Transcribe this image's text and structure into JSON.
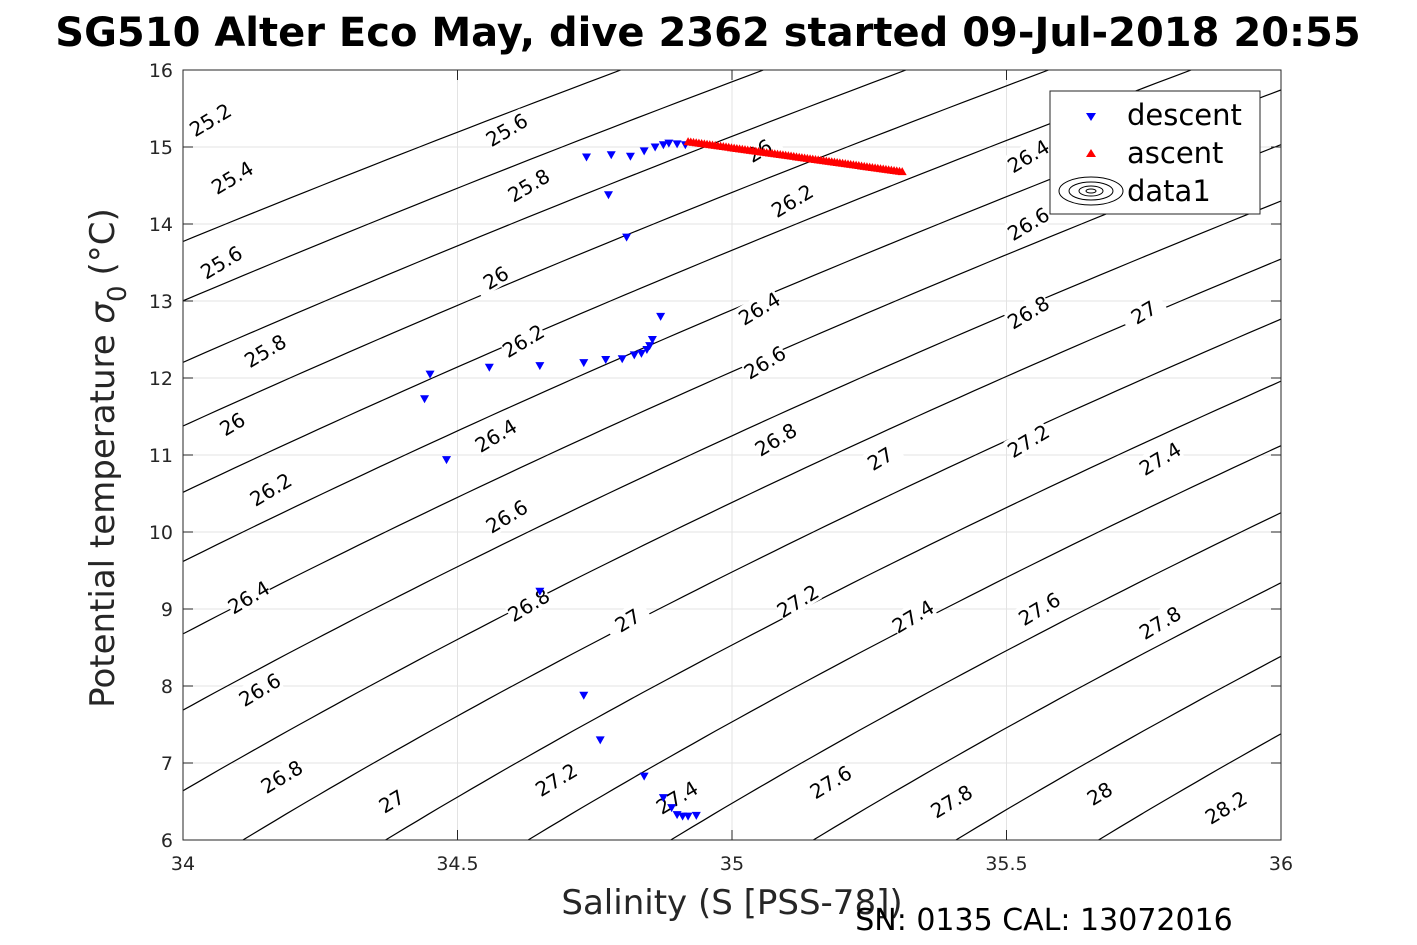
{
  "chart_data": {
    "type": "scatter",
    "title": "SG510 Alter Eco May, dive 2362 started 09-Jul-2018 20:55",
    "xlabel": "Salinity (S [PSS-78])",
    "ylabel": "Potential temperature",
    "ylabel_symbol": "σ",
    "ylabel_subscript": "0",
    "ylabel_unit": "(°C)",
    "footer": "SN: 0135  CAL: 13072016",
    "xlim": [
      34,
      36
    ],
    "ylim": [
      6,
      16
    ],
    "xticks": [
      "34",
      "34.5",
      "35",
      "35.5",
      "36"
    ],
    "yticks": [
      "6",
      "7",
      "8",
      "9",
      "10",
      "11",
      "12",
      "13",
      "14",
      "15",
      "16"
    ],
    "grid": true,
    "legend_position": "top-right",
    "contour_levels": [
      {
        "level": 25.2,
        "label": "25.2"
      },
      {
        "level": 25.4,
        "label": "25.4"
      },
      {
        "level": 25.6,
        "label": "25.6"
      },
      {
        "level": 25.8,
        "label": "25.8"
      },
      {
        "level": 26.0,
        "label": "26"
      },
      {
        "level": 26.2,
        "label": "26.2"
      },
      {
        "level": 26.4,
        "label": "26.4"
      },
      {
        "level": 26.6,
        "label": "26.6"
      },
      {
        "level": 26.8,
        "label": "26.8"
      },
      {
        "level": 27.0,
        "label": "27"
      },
      {
        "level": 27.2,
        "label": "27.2"
      },
      {
        "level": 27.4,
        "label": "27.4"
      },
      {
        "level": 27.6,
        "label": "27.6"
      },
      {
        "level": 27.8,
        "label": "27.8"
      },
      {
        "level": 28.0,
        "label": "28"
      },
      {
        "level": 28.2,
        "label": "28.2"
      }
    ],
    "contour_labels": [
      {
        "label": "25.2",
        "x": 34.05,
        "y": 15.35
      },
      {
        "label": "25.6",
        "x": 34.59,
        "y": 15.22
      },
      {
        "label": "26",
        "x": 35.05,
        "y": 14.95
      },
      {
        "label": "26.4",
        "x": 35.54,
        "y": 14.88
      },
      {
        "label": "25.4",
        "x": 34.09,
        "y": 14.6
      },
      {
        "label": "25.8",
        "x": 34.63,
        "y": 14.5
      },
      {
        "label": "26.2",
        "x": 35.11,
        "y": 14.3
      },
      {
        "label": "26.6",
        "x": 35.54,
        "y": 14.0
      },
      {
        "label": "25.6",
        "x": 34.07,
        "y": 13.5
      },
      {
        "label": "26",
        "x": 34.57,
        "y": 13.3
      },
      {
        "label": "26.4",
        "x": 35.05,
        "y": 12.9
      },
      {
        "label": "26.8",
        "x": 35.54,
        "y": 12.85
      },
      {
        "label": "25.8",
        "x": 34.15,
        "y": 12.35
      },
      {
        "label": "26.2",
        "x": 34.62,
        "y": 12.48
      },
      {
        "label": "26.6",
        "x": 35.06,
        "y": 12.2
      },
      {
        "label": "27",
        "x": 35.75,
        "y": 12.85
      },
      {
        "label": "26",
        "x": 34.09,
        "y": 11.4
      },
      {
        "label": "26.4",
        "x": 34.57,
        "y": 11.25
      },
      {
        "label": "26.8",
        "x": 35.08,
        "y": 11.2
      },
      {
        "label": "27",
        "x": 35.27,
        "y": 10.95
      },
      {
        "label": "27.2",
        "x": 35.54,
        "y": 11.18
      },
      {
        "label": "27.4",
        "x": 35.78,
        "y": 10.95
      },
      {
        "label": "26.2",
        "x": 34.16,
        "y": 10.55
      },
      {
        "label": "26.6",
        "x": 34.59,
        "y": 10.2
      },
      {
        "label": "26.4",
        "x": 34.12,
        "y": 9.15
      },
      {
        "label": "26.8",
        "x": 34.63,
        "y": 9.05
      },
      {
        "label": "27",
        "x": 34.81,
        "y": 8.85
      },
      {
        "label": "27.2",
        "x": 35.12,
        "y": 9.1
      },
      {
        "label": "27.4",
        "x": 35.33,
        "y": 8.9
      },
      {
        "label": "27.6",
        "x": 35.56,
        "y": 9.0
      },
      {
        "label": "27.8",
        "x": 35.78,
        "y": 8.82
      },
      {
        "label": "26.6",
        "x": 34.14,
        "y": 7.95
      },
      {
        "label": "26.8",
        "x": 34.18,
        "y": 6.82
      },
      {
        "label": "27",
        "x": 34.38,
        "y": 6.5
      },
      {
        "label": "27.2",
        "x": 34.68,
        "y": 6.78
      },
      {
        "label": "27.4",
        "x": 34.9,
        "y": 6.55
      },
      {
        "label": "27.6",
        "x": 35.18,
        "y": 6.75
      },
      {
        "label": "27.8",
        "x": 35.4,
        "y": 6.5
      },
      {
        "label": "28",
        "x": 35.67,
        "y": 6.6
      },
      {
        "label": "28.2",
        "x": 35.9,
        "y": 6.42
      }
    ],
    "series": [
      {
        "name": "descent",
        "marker": "triangle-down",
        "color": "#0000ff",
        "points": [
          [
            34.735,
            14.87
          ],
          [
            34.78,
            14.9
          ],
          [
            34.815,
            14.88
          ],
          [
            34.84,
            14.95
          ],
          [
            34.86,
            15.0
          ],
          [
            34.875,
            15.03
          ],
          [
            34.885,
            15.05
          ],
          [
            34.9,
            15.04
          ],
          [
            34.915,
            15.03
          ],
          [
            34.775,
            14.38
          ],
          [
            34.808,
            13.83
          ],
          [
            34.87,
            12.8
          ],
          [
            34.855,
            12.5
          ],
          [
            34.85,
            12.42
          ],
          [
            34.845,
            12.37
          ],
          [
            34.835,
            12.32
          ],
          [
            34.822,
            12.3
          ],
          [
            34.8,
            12.25
          ],
          [
            34.77,
            12.24
          ],
          [
            34.73,
            12.2
          ],
          [
            34.65,
            12.16
          ],
          [
            34.558,
            12.14
          ],
          [
            34.45,
            12.05
          ],
          [
            34.44,
            11.73
          ],
          [
            34.48,
            10.94
          ],
          [
            34.65,
            9.23
          ],
          [
            34.73,
            7.88
          ],
          [
            34.76,
            7.3
          ],
          [
            34.84,
            6.83
          ],
          [
            34.875,
            6.55
          ],
          [
            34.89,
            6.42
          ],
          [
            34.9,
            6.33
          ],
          [
            34.91,
            6.31
          ],
          [
            34.92,
            6.31
          ],
          [
            34.935,
            6.32
          ]
        ]
      },
      {
        "name": "ascent",
        "marker": "triangle-up",
        "color": "#ff0000",
        "x_range": [
          34.92,
          35.31
        ],
        "y_range": [
          15.07,
          14.68
        ]
      },
      {
        "name": "data1",
        "marker": "contour"
      }
    ]
  }
}
